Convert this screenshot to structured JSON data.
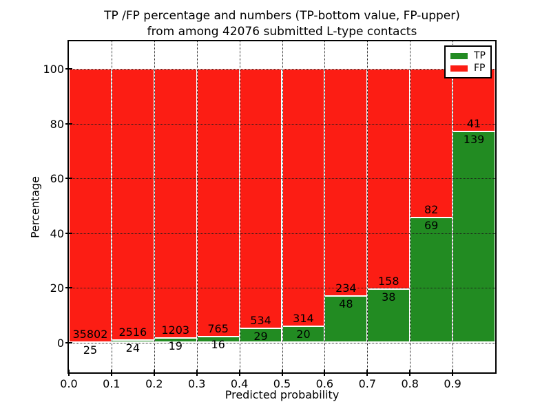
{
  "title": {
    "line1": "TP /FP percentage and numbers (TP-bottom value, FP-upper)",
    "line2": "from among 42076 submitted L-type contacts"
  },
  "axes": {
    "x_label": "Predicted probability",
    "y_label": "Percentage"
  },
  "legend": {
    "position": "upper right",
    "items": [
      {
        "label": "TP",
        "color_key": "tp"
      },
      {
        "label": "FP",
        "color_key": "fp"
      }
    ]
  },
  "colors": {
    "tp": "#228b22",
    "fp": "#fc1d14",
    "grid": "#1a1a1a",
    "bar_edge": "#ffffff",
    "text": "#000000"
  },
  "chart_data": {
    "type": "bar",
    "stacked": true,
    "normalized": "each bar scaled to 100% of its bin total; counts shown as labels",
    "title": "TP /FP percentage and numbers (TP-bottom value, FP-upper) from among 42076 submitted L-type contacts",
    "xlabel": "Predicted probability",
    "ylabel": "Percentage",
    "total_submitted": 42076,
    "bin_width": 0.1,
    "xlim": [
      0.0,
      1.0
    ],
    "ylim": [
      -11,
      110
    ],
    "grid": true,
    "legend_position": "upper right",
    "x_ticks": [
      "0.0",
      "0.1",
      "0.2",
      "0.3",
      "0.4",
      "0.5",
      "0.6",
      "0.7",
      "0.8",
      "0.9"
    ],
    "y_ticks": [
      0,
      20,
      40,
      60,
      80,
      100
    ],
    "categories": [
      "0.0-0.1",
      "0.1-0.2",
      "0.2-0.3",
      "0.3-0.4",
      "0.4-0.5",
      "0.5-0.6",
      "0.6-0.7",
      "0.7-0.8",
      "0.8-0.9",
      "0.9-1.0"
    ],
    "series": [
      {
        "name": "TP",
        "counts": [
          25,
          24,
          19,
          16,
          29,
          20,
          48,
          38,
          69,
          139
        ]
      },
      {
        "name": "FP",
        "counts": [
          35802,
          2516,
          1203,
          765,
          534,
          314,
          234,
          158,
          82,
          41
        ]
      }
    ],
    "tp_percent": [
      0.07,
      0.94,
      1.55,
      2.05,
      5.15,
      5.99,
      17.02,
      19.39,
      45.7,
      77.22
    ]
  }
}
